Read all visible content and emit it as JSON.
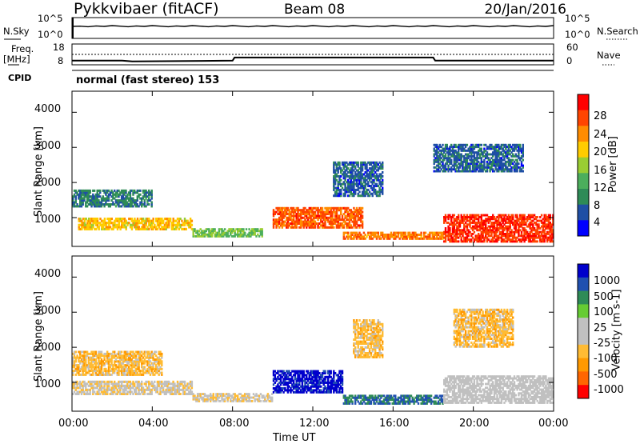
{
  "header": {
    "radar": "Pykkvibaer (fitACF)",
    "beam": "Beam 08",
    "date": "20/Jan/2016"
  },
  "params": {
    "nsky_label": "N.Sky",
    "nsearch_label": "N.Search",
    "freq_label_line1": "Freq.",
    "freq_label_line2": "[MHz]",
    "nave_label": "Nave",
    "cpid_label": "CPID",
    "cpid_value": "normal (fast stereo) 153",
    "noise_ticks_left": [
      "10^5",
      "10^0"
    ],
    "noise_ticks_right": [
      "10^5",
      "10^0"
    ],
    "freq_ticks": [
      "18",
      "8"
    ],
    "nave_ticks": [
      "60",
      "0"
    ]
  },
  "colors": {
    "power": [
      "#0000ff",
      "#1f4fa5",
      "#2e8b57",
      "#4cae5c",
      "#9acd32",
      "#ffcc00",
      "#ff8c00",
      "#ff4500",
      "#ff0000"
    ],
    "velocity": [
      "#ff0000",
      "#ff6600",
      "#ff9900",
      "#ffbb33",
      "#c0c0c0",
      "#c0c0c0",
      "#66cc33",
      "#2e8b57",
      "#2050b0",
      "#0000cc"
    ]
  },
  "chart_data": [
    {
      "type": "heatmap",
      "title": "",
      "xlabel": "Time UT",
      "ylabel": "Slant Range [km]",
      "xlim_hours": [
        0,
        24
      ],
      "ylim_km": [
        180,
        4600
      ],
      "x_ticks": [
        "00:00",
        "04:00",
        "08:00",
        "12:00",
        "16:00",
        "20:00",
        "00:00"
      ],
      "y_ticks": [
        "1000",
        "2000",
        "3000",
        "4000"
      ],
      "colorbar": {
        "label": "Power [dB]",
        "ticks": [
          "28",
          "24",
          "20",
          "16",
          "12",
          "8",
          "4"
        ],
        "range": [
          0,
          32
        ]
      },
      "echo_regions": [
        {
          "t0": 0.3,
          "t1": 6.0,
          "r0": 650,
          "r1": 1000,
          "value": 20
        },
        {
          "t0": 0.0,
          "t1": 4.0,
          "r0": 1300,
          "r1": 1800,
          "value": 8
        },
        {
          "t0": 6.0,
          "t1": 9.5,
          "r0": 450,
          "r1": 700,
          "value": 14
        },
        {
          "t0": 10.0,
          "t1": 14.5,
          "r0": 700,
          "r1": 1300,
          "value": 26
        },
        {
          "t0": 13.5,
          "t1": 18.5,
          "r0": 380,
          "r1": 600,
          "value": 24
        },
        {
          "t0": 18.5,
          "t1": 24.0,
          "r0": 300,
          "r1": 1100,
          "value": 28
        },
        {
          "t0": 13.0,
          "t1": 15.5,
          "r0": 1600,
          "r1": 2600,
          "value": 6
        },
        {
          "t0": 18.0,
          "t1": 22.5,
          "r0": 2300,
          "r1": 3100,
          "value": 6
        }
      ]
    },
    {
      "type": "heatmap",
      "title": "",
      "xlabel": "Time UT",
      "ylabel": "Slant Range [km]",
      "xlim_hours": [
        0,
        24
      ],
      "ylim_km": [
        180,
        4600
      ],
      "x_ticks": [
        "00:00",
        "04:00",
        "08:00",
        "12:00",
        "16:00",
        "20:00",
        "00:00"
      ],
      "y_ticks": [
        "1000",
        "2000",
        "3000",
        "4000"
      ],
      "colorbar": {
        "label": "Velocity [m s-1]",
        "ticks": [
          "1000",
          "500",
          "100",
          "25",
          "-25",
          "-100",
          "-500",
          "-1000"
        ],
        "range": [
          -1000,
          1000
        ]
      },
      "echo_regions": [
        {
          "t0": 0.0,
          "t1": 6.0,
          "r0": 650,
          "r1": 1050,
          "value": -150
        },
        {
          "t0": 0.0,
          "t1": 4.5,
          "r0": 1200,
          "r1": 1900,
          "value": -300
        },
        {
          "t0": 6.0,
          "t1": 10.0,
          "r0": 450,
          "r1": 700,
          "value": -150
        },
        {
          "t0": 10.0,
          "t1": 13.5,
          "r0": 700,
          "r1": 1350,
          "value": 900
        },
        {
          "t0": 13.5,
          "t1": 18.5,
          "r0": 380,
          "r1": 650,
          "value": 600
        },
        {
          "t0": 18.5,
          "t1": 24.0,
          "r0": 400,
          "r1": 1200,
          "value": 0
        },
        {
          "t0": 14.0,
          "t1": 15.5,
          "r0": 1700,
          "r1": 2800,
          "value": -300
        },
        {
          "t0": 19.0,
          "t1": 22.0,
          "r0": 2000,
          "r1": 3100,
          "value": -300
        }
      ]
    }
  ],
  "series_freq": {
    "x": [
      0,
      2.5,
      3,
      8,
      8.1,
      18,
      18.1,
      24
    ],
    "mhz": [
      10.0,
      10.0,
      9.6,
      10.0,
      11.5,
      11.5,
      10.0,
      10.0
    ]
  }
}
